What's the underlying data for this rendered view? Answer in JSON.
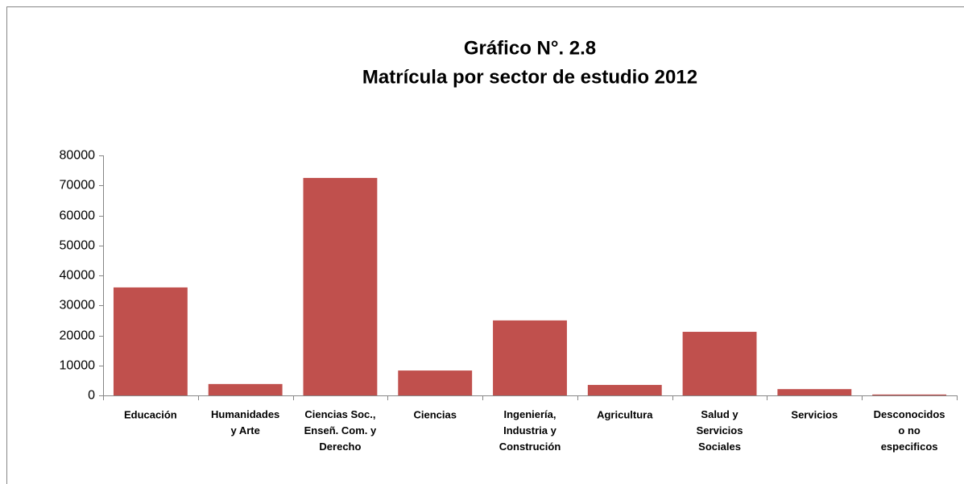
{
  "chart_data": {
    "type": "bar",
    "title": "Gráfico N°. 2.8",
    "subtitle": "Matrícula por sector de estudio 2012",
    "categories": [
      "Educación",
      "Humanidades\ny Arte",
      "Ciencias Soc.,\nEnseñ. Com. y\nDerecho",
      "Ciencias",
      "Ingeniería,\nIndustria y\nConstrución",
      "Agricultura",
      "Salud y\nServicios\nSociales",
      "Servicios",
      "Desconocidos\no no\nespecificos"
    ],
    "values": [
      36000,
      3800,
      72500,
      8300,
      25000,
      3500,
      21200,
      2100,
      300
    ],
    "color": "#c0504d",
    "ylim": [
      0,
      80000
    ],
    "yticks": [
      0,
      10000,
      20000,
      30000,
      40000,
      50000,
      60000,
      70000,
      80000
    ],
    "grid": false
  }
}
